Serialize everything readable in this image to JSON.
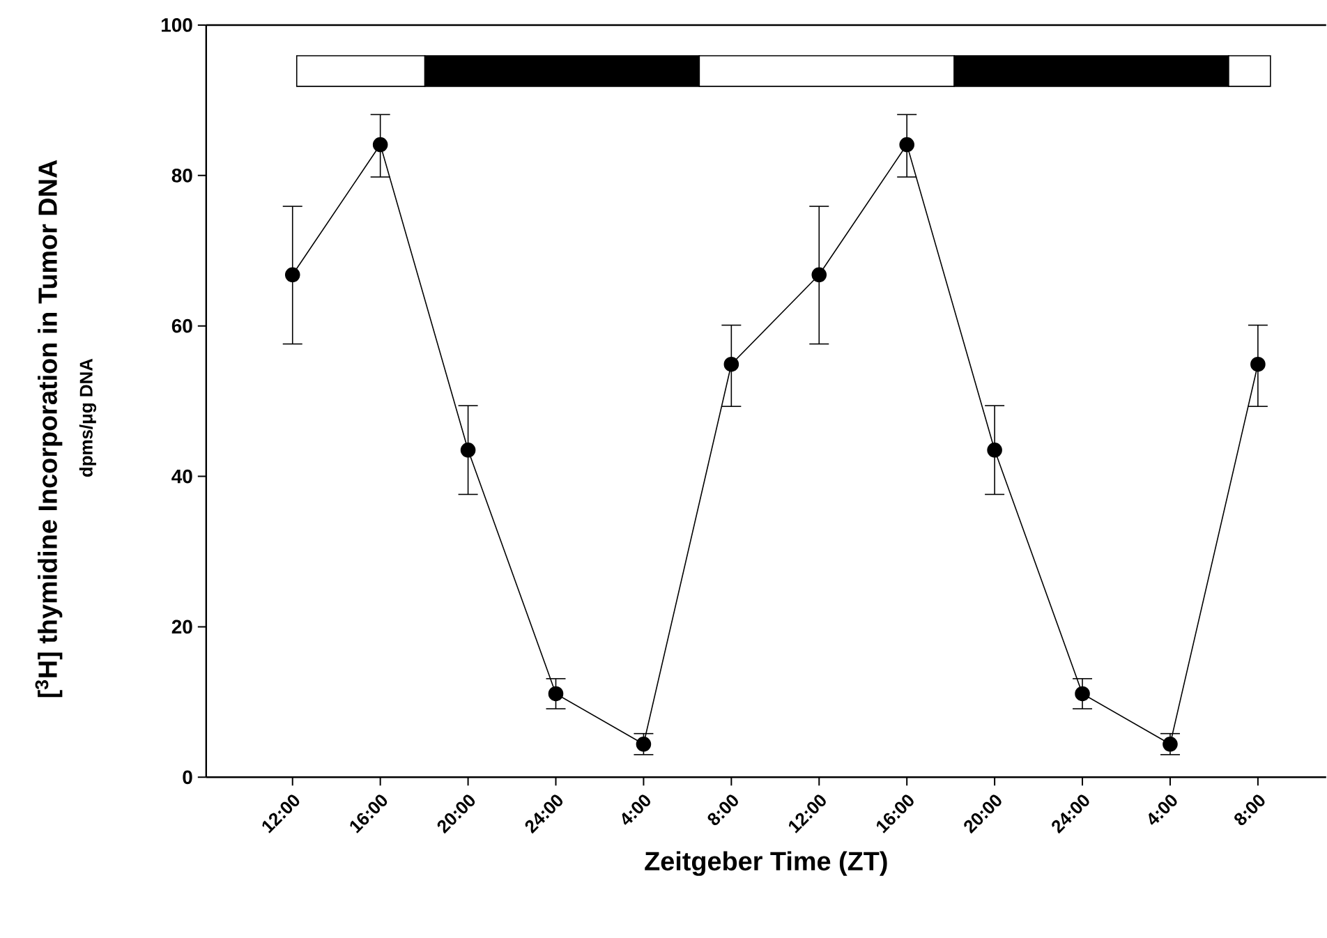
{
  "chart_data": {
    "type": "line",
    "xlabel": "Zeitgeber Time  (ZT)",
    "ylabel": "[$^{3}$H] thymidine Incorporation in Tumor DNA",
    "annotations": [
      "dpms/μg DNA"
    ],
    "categories": [
      "12:00",
      "16:00",
      "20:00",
      "24:00",
      "4:00",
      "8:00",
      "12:00",
      "16:00",
      "20:00",
      "24:00",
      "4:00",
      "8:00"
    ],
    "ylim": [
      0,
      100
    ],
    "yticks": [
      0,
      20,
      40,
      60,
      80,
      100
    ],
    "marker": "circle",
    "line_style": "solid",
    "series": [
      {
        "color": "#000000",
        "values": [
          66.8,
          84.1,
          43.5,
          11.1,
          4.4,
          54.9,
          66.8,
          84.1,
          43.5,
          11.1,
          4.4,
          54.9
        ],
        "errors": [
          [
            57.6,
            75.9
          ],
          [
            79.8,
            88.1
          ],
          [
            37.6,
            49.4
          ],
          [
            9.1,
            13.1
          ],
          [
            3.0,
            5.8
          ],
          [
            49.3,
            60.1
          ],
          [
            57.6,
            75.9
          ],
          [
            79.8,
            88.1
          ],
          [
            37.6,
            49.4
          ],
          [
            9.1,
            13.1
          ],
          [
            3.0,
            5.8
          ],
          [
            49.3,
            60.1
          ]
        ]
      }
    ]
  }
}
